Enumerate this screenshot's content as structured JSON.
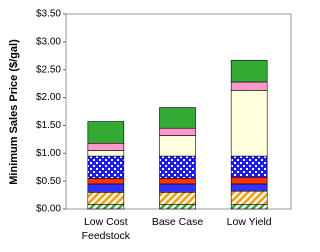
{
  "chart_data": {
    "type": "bar",
    "stacked": true,
    "y_label": "Minimum Sales Price ($/gal)",
    "categories": [
      "Low Cost Feedstock",
      "Base Case",
      "Low Yield"
    ],
    "ylim": [
      0,
      3.5
    ],
    "yticks": [
      {
        "value": 0,
        "label": "$0.00"
      },
      {
        "value": 0.5,
        "label": "$0.50"
      },
      {
        "value": 1,
        "label": "$1.00"
      },
      {
        "value": 1.5,
        "label": "$1.50"
      },
      {
        "value": 2,
        "label": "$2.00"
      },
      {
        "value": 2.5,
        "label": "$2.50"
      },
      {
        "value": 3,
        "label": "$3.00"
      },
      {
        "value": 3.5,
        "label": "$3.50"
      }
    ],
    "grid": false,
    "series": [
      {
        "color": "#33aa33",
        "pattern": "diagonal",
        "values": [
          0.08,
          0.08,
          0.08
        ]
      },
      {
        "color": "#ff9900",
        "pattern": "diagonal",
        "values": [
          0.22,
          0.22,
          0.24
        ]
      },
      {
        "color": "#3333ff",
        "values": [
          0.15,
          0.15,
          0.13
        ]
      },
      {
        "color": "#ff3300",
        "values": [
          0.1,
          0.1,
          0.12
        ]
      },
      {
        "color": "#1a1aff",
        "pattern": "checker",
        "values": [
          0.4,
          0.4,
          0.38
        ]
      },
      {
        "color": "#ffffdd",
        "values": [
          0.1,
          0.37,
          1.18
        ]
      },
      {
        "color": "#ff99cc",
        "values": [
          0.13,
          0.13,
          0.15
        ]
      },
      {
        "color": "#33aa33",
        "values": [
          0.39,
          0.37,
          0.39
        ]
      }
    ]
  }
}
